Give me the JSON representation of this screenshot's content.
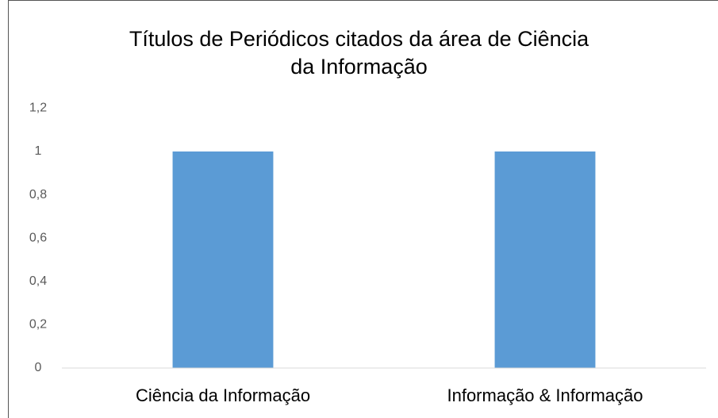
{
  "chart_data": {
    "type": "bar",
    "title": "Títulos de Periódicos citados da área de Ciência\nda Informação",
    "categories": [
      "Ciência da Informação",
      "Informação & Informação"
    ],
    "values": [
      1,
      1
    ],
    "color": "#5b9bd5",
    "ylim": [
      0,
      1.2
    ],
    "yticks": [
      0,
      {
        "value": 0.2,
        "label": "0,2"
      },
      {
        "value": 0.4,
        "label": "0,4"
      },
      {
        "value": 0.6,
        "label": "0,6"
      },
      {
        "value": 0.8,
        "label": "0,8"
      },
      1,
      {
        "value": 1.2,
        "label": "1,2"
      }
    ],
    "grid": false
  }
}
